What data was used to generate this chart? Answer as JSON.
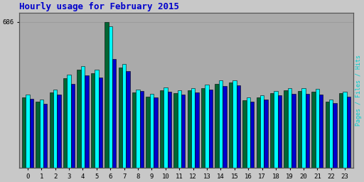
{
  "title": "Hourly usage for February 2015",
  "hours": [
    0,
    1,
    2,
    3,
    4,
    5,
    6,
    7,
    8,
    9,
    10,
    11,
    12,
    13,
    14,
    15,
    16,
    17,
    18,
    19,
    20,
    21,
    22,
    23
  ],
  "hits": [
    330,
    310,
    355,
    420,
    460,
    445,
    686,
    470,
    355,
    335,
    365,
    352,
    365,
    375,
    395,
    400,
    318,
    330,
    350,
    365,
    362,
    358,
    310,
    350
  ],
  "files": [
    345,
    320,
    368,
    438,
    478,
    460,
    665,
    488,
    368,
    348,
    378,
    365,
    375,
    390,
    410,
    412,
    330,
    342,
    362,
    375,
    375,
    372,
    322,
    358
  ],
  "pages": [
    325,
    300,
    345,
    395,
    435,
    425,
    510,
    455,
    362,
    332,
    358,
    344,
    354,
    368,
    383,
    388,
    312,
    322,
    342,
    348,
    348,
    344,
    304,
    335
  ],
  "hits_color": "#006633",
  "files_color": "#00ffff",
  "pages_color": "#0000cc",
  "bg_color": "#c8c8c8",
  "plot_bg_color": "#aaaaaa",
  "title_color": "#0000cc",
  "ylabel_color": "#00cccc",
  "ylabel_text": "Pages / Files / Hits",
  "bar_width": 0.28,
  "ylim_max": 730,
  "ytick_value": 686,
  "bar_edge_color": "#000000"
}
